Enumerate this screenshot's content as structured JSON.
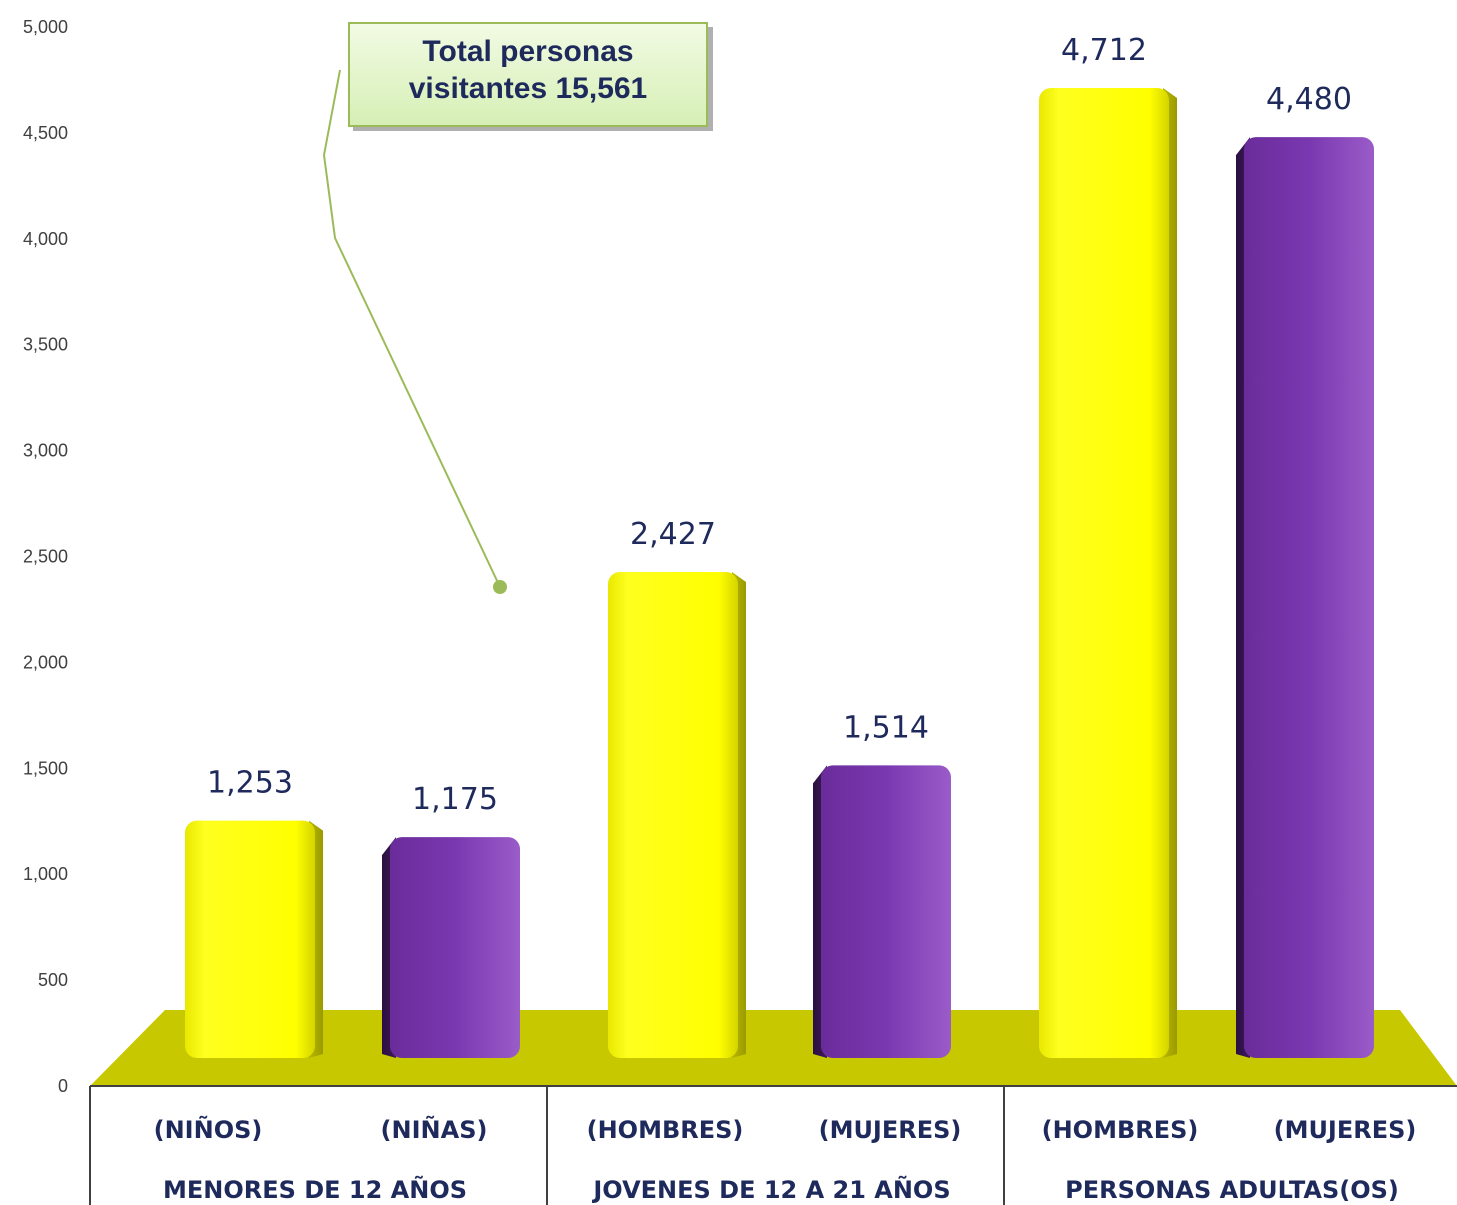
{
  "chart_data": {
    "type": "bar",
    "title": "",
    "xlabel": "",
    "ylabel": "",
    "ylim": [
      0,
      5000
    ],
    "y_ticks": [
      "0",
      "500",
      "1,000",
      "1,500",
      "2,000",
      "2,500",
      "3,000",
      "3,500",
      "4,000",
      "4,500",
      "5,000"
    ],
    "bars": [
      {
        "category": "(NIÑOS)",
        "group": "MENORES DE 12 AÑOS",
        "value": 1253,
        "label": "1,253",
        "color": "#ffff00"
      },
      {
        "category": "(NIÑAS)",
        "group": "MENORES DE 12 AÑOS",
        "value": 1175,
        "label": "1,175",
        "color": "#7030a0"
      },
      {
        "category": "(HOMBRES)",
        "group": "JOVENES DE 12 A 21 AÑOS",
        "value": 2427,
        "label": "2,427",
        "color": "#ffff00"
      },
      {
        "category": "(MUJERES)",
        "group": "JOVENES DE 12 A 21 AÑOS",
        "value": 1514,
        "label": "1,514",
        "color": "#7030a0"
      },
      {
        "category": "(HOMBRES)",
        "group": "PERSONAS ADULTAS(OS)",
        "value": 4712,
        "label": "4,712",
        "color": "#ffff00"
      },
      {
        "category": "(MUJERES)",
        "group": "PERSONAS ADULTAS(OS)",
        "value": 4480,
        "label": "4,480",
        "color": "#7030a0"
      }
    ],
    "groups": [
      "MENORES DE 12 AÑOS",
      "JOVENES DE 12 A 21 AÑOS",
      "PERSONAS ADULTAS(OS)"
    ],
    "annotation": {
      "lines": [
        "Total personas",
        "visitantes 15,561"
      ]
    },
    "colors": {
      "floor": "#c8c800",
      "yellow": "#ffff00",
      "purple": "#7030a0",
      "callout_border": "#9bbb59",
      "callout_fill": "#e4f5c9"
    }
  }
}
